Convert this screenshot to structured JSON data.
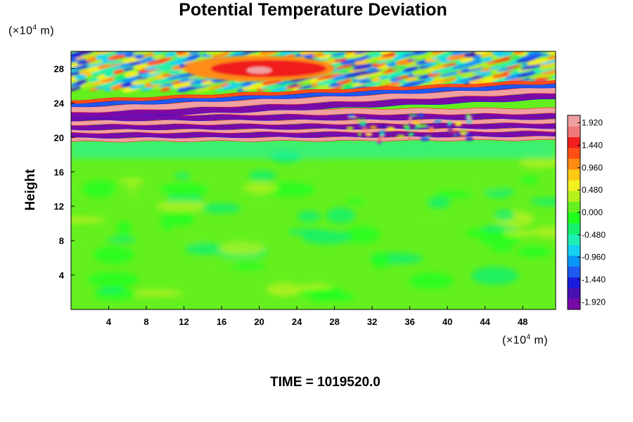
{
  "chart_data": {
    "type": "heatmap",
    "title": "Potential Temperature Deviation",
    "ylabel": "Height",
    "y_unit": {
      "prefix": "(×10",
      "exp": "4",
      "suffix": " m)"
    },
    "x_unit": {
      "prefix": "(×10",
      "exp": "4",
      "suffix": " m)"
    },
    "xlim": [
      0,
      51.5
    ],
    "ylim": [
      0,
      30
    ],
    "xticks": [
      4,
      8,
      12,
      16,
      20,
      24,
      28,
      32,
      36,
      40,
      44,
      48
    ],
    "yticks": [
      4,
      8,
      12,
      16,
      20,
      24,
      28
    ],
    "colorbar": {
      "range": [
        -2.08,
        2.08
      ],
      "tick_values": [
        1.92,
        1.44,
        0.96,
        0.48,
        0.0,
        -0.48,
        -0.96,
        -1.44,
        -1.92
      ],
      "tick_labels": [
        "1.920",
        "1.440",
        "0.960",
        "0.480",
        "0.000",
        "-0.480",
        "-0.960",
        "-1.440",
        "-1.920"
      ],
      "colors": [
        "#7a0aa8",
        "#4a10b0",
        "#1a1adc",
        "#1e5af0",
        "#0a96f5",
        "#14d2f0",
        "#1ef0b4",
        "#14f06e",
        "#1eff1e",
        "#64f01e",
        "#b4f01e",
        "#f0f01e",
        "#ffc814",
        "#ff8c14",
        "#ff5014",
        "#f01e1e",
        "#f07878",
        "#f0a0a0"
      ]
    },
    "features": [
      {
        "name": "near-zero region",
        "x": [
          0,
          51.5
        ],
        "y": [
          0,
          19
        ],
        "value": 0.0
      },
      {
        "name": "upper warm patch",
        "x": [
          12,
          28
        ],
        "y": [
          26.5,
          29.5
        ],
        "value": 1.5
      },
      {
        "name": "alternating layers",
        "x": [
          0,
          51.5
        ],
        "y": [
          19.5,
          25.5
        ],
        "values": [
          2.0,
          -2.0
        ]
      }
    ]
  },
  "time_label": "TIME = 1019520.0"
}
